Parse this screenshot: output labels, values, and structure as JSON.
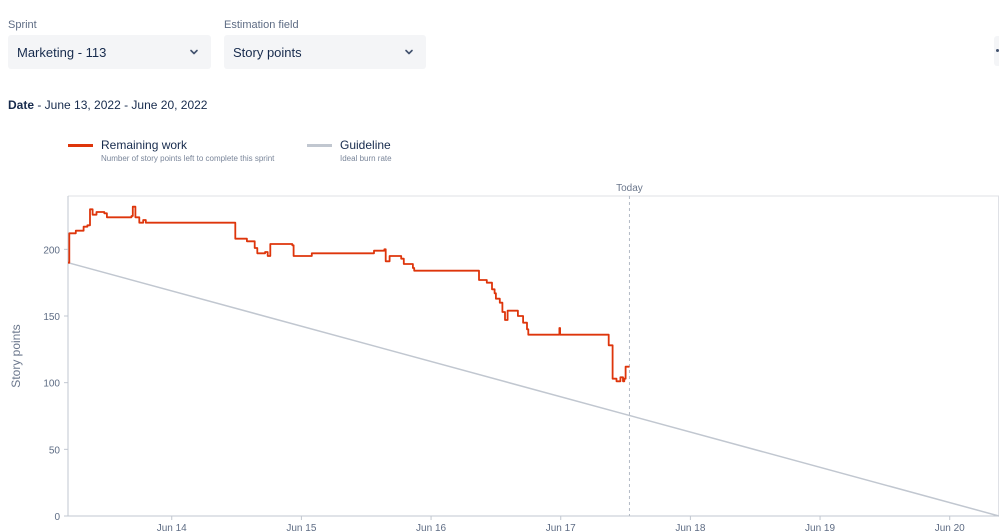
{
  "filters": {
    "sprint": {
      "label": "Sprint",
      "value": "Marketing - 113"
    },
    "estimation": {
      "label": "Estimation field",
      "value": "Story points"
    }
  },
  "date_range": {
    "label": "Date",
    "text": " - June 13, 2022 - June 20, 2022"
  },
  "legend": [
    {
      "title": "Remaining work",
      "description": "Number of story points left to complete this sprint",
      "color": "#de350b"
    },
    {
      "title": "Guideline",
      "description": "Ideal burn rate",
      "color": "#c1c7d0"
    }
  ],
  "chart_data": {
    "type": "line",
    "title": "",
    "xlabel": "",
    "ylabel": "Story points",
    "xlim": [
      13.2,
      20.38
    ],
    "ylim": [
      0,
      240
    ],
    "x_ticks": [
      14,
      15,
      16,
      17,
      18,
      19,
      20
    ],
    "x_tick_labels": [
      "Jun 14",
      "Jun 15",
      "Jun 16",
      "Jun 17",
      "Jun 18",
      "Jun 19",
      "Jun 20"
    ],
    "y_ticks": [
      0,
      50,
      100,
      150,
      200
    ],
    "today": {
      "label": "Today",
      "x": 17.53
    },
    "series": [
      {
        "name": "Remaining work",
        "color": "#de350b",
        "step": true,
        "points": [
          [
            13.2,
            190
          ],
          [
            13.21,
            212
          ],
          [
            13.26,
            214
          ],
          [
            13.3,
            214
          ],
          [
            13.32,
            217
          ],
          [
            13.35,
            218
          ],
          [
            13.37,
            230
          ],
          [
            13.39,
            226
          ],
          [
            13.42,
            228
          ],
          [
            13.48,
            227
          ],
          [
            13.5,
            224
          ],
          [
            13.62,
            224
          ],
          [
            13.69,
            225
          ],
          [
            13.7,
            232
          ],
          [
            13.72,
            224
          ],
          [
            13.75,
            220
          ],
          [
            13.78,
            222
          ],
          [
            13.8,
            220
          ],
          [
            14.48,
            220
          ],
          [
            14.49,
            208
          ],
          [
            14.58,
            206
          ],
          [
            14.64,
            201
          ],
          [
            14.66,
            197
          ],
          [
            14.72,
            198
          ],
          [
            14.74,
            195
          ],
          [
            14.76,
            204
          ],
          [
            14.93,
            203
          ],
          [
            14.94,
            195
          ],
          [
            15.07,
            195
          ],
          [
            15.08,
            197
          ],
          [
            15.55,
            197
          ],
          [
            15.56,
            199
          ],
          [
            15.64,
            200
          ],
          [
            15.65,
            191
          ],
          [
            15.68,
            195
          ],
          [
            15.77,
            193
          ],
          [
            15.79,
            189
          ],
          [
            15.85,
            189
          ],
          [
            15.86,
            186
          ],
          [
            15.87,
            184
          ],
          [
            16.36,
            184
          ],
          [
            16.37,
            177
          ],
          [
            16.43,
            175
          ],
          [
            16.47,
            170
          ],
          [
            16.49,
            167
          ],
          [
            16.5,
            163
          ],
          [
            16.53,
            160
          ],
          [
            16.55,
            153
          ],
          [
            16.57,
            147
          ],
          [
            16.59,
            154
          ],
          [
            16.65,
            154
          ],
          [
            16.67,
            150
          ],
          [
            16.71,
            145
          ],
          [
            16.74,
            140
          ],
          [
            16.75,
            136
          ],
          [
            16.98,
            136
          ],
          [
            16.99,
            141
          ],
          [
            16.995,
            136
          ],
          [
            17.36,
            136
          ],
          [
            17.37,
            128
          ],
          [
            17.4,
            103
          ],
          [
            17.43,
            101
          ],
          [
            17.46,
            104
          ],
          [
            17.48,
            101
          ],
          [
            17.49,
            103
          ],
          [
            17.5,
            112
          ],
          [
            17.53,
            112
          ]
        ]
      },
      {
        "name": "Guideline",
        "color": "#c1c7d0",
        "step": false,
        "points": [
          [
            13.2,
            190
          ],
          [
            20.38,
            0
          ]
        ]
      }
    ]
  }
}
